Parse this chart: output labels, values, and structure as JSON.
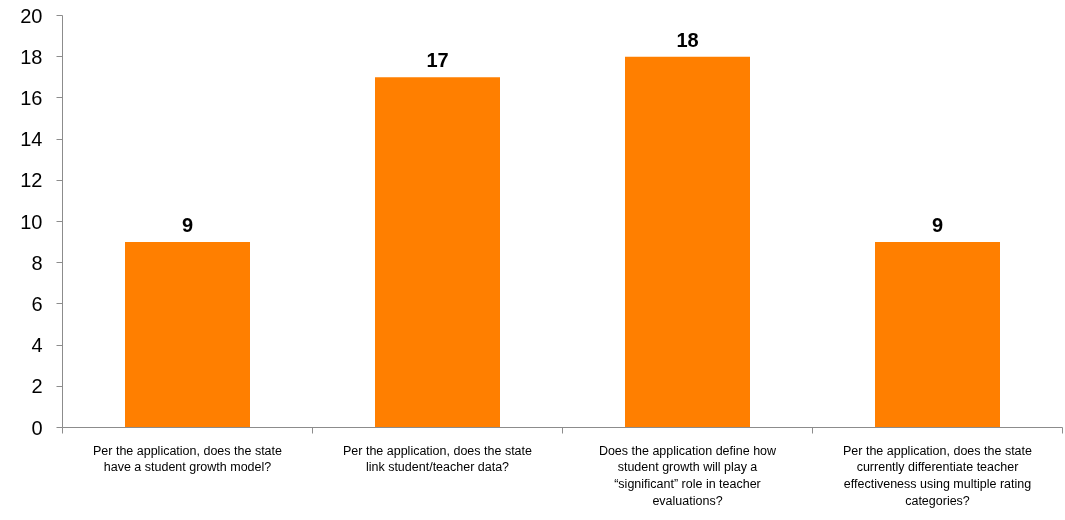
{
  "chart_data": {
    "type": "bar",
    "categories": [
      "Per the application, does the state have a student growth model?",
      "Per the application, does the state link student/teacher data?",
      "Does the application define how student growth will play a “significant” role in teacher evaluations?",
      "Per the application, does the state currently differentiate teacher effectiveness using multiple rating categories?"
    ],
    "values": [
      9,
      17,
      18,
      9
    ],
    "color": "#ff7f00",
    "ylim": [
      0,
      20
    ],
    "yticks": [
      0,
      2,
      4,
      6,
      8,
      10,
      12,
      14,
      16,
      18,
      20
    ],
    "data_labels": true,
    "grid": false
  }
}
